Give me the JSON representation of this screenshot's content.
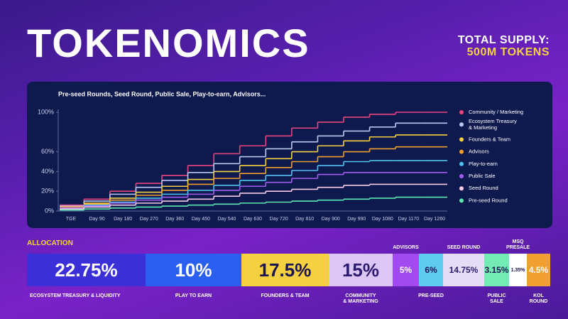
{
  "header": {
    "title": "TOKENOMICS",
    "supply_label": "TOTAL SUPPLY:",
    "supply_value": "500M TOKENS"
  },
  "chart_data": {
    "type": "line",
    "subtitle": "Pre-seed Rounds, Seed Round, Public Sale, Play-to-earn, Advisors...",
    "categories": [
      "TGE",
      "Day 90",
      "Day 180",
      "Day 270",
      "Day 360",
      "Day 450",
      "Day 540",
      "Day 630",
      "Day 720",
      "Day 810",
      "Day 900",
      "Day 990",
      "Day 1080",
      "Day 1170",
      "Day 1260"
    ],
    "ylim": [
      0,
      100
    ],
    "yticks": [
      {
        "value": 0,
        "label": "0%"
      },
      {
        "value": 20,
        "label": "20%"
      },
      {
        "value": 40,
        "label": "40%"
      },
      {
        "value": 60,
        "label": "60%"
      },
      {
        "value": 100,
        "label": "100%"
      }
    ],
    "step": true,
    "series": [
      {
        "name": "Community / Marketing",
        "color": "#e8457e",
        "values": [
          6,
          12,
          20,
          28,
          36,
          46,
          58,
          66,
          76,
          84,
          90,
          95,
          98,
          100,
          100
        ]
      },
      {
        "name": "Ecosystem Treasury & Marketing",
        "color": "#b8c9f0",
        "values": [
          5,
          10,
          17,
          24,
          31,
          39,
          48,
          55,
          63,
          70,
          76,
          81,
          85,
          89,
          89
        ]
      },
      {
        "name": "Founders & Team",
        "color": "#f5d142",
        "values": [
          4,
          8,
          13,
          19,
          25,
          32,
          40,
          46,
          53,
          60,
          66,
          71,
          75,
          77,
          77
        ]
      },
      {
        "name": "Advisors",
        "color": "#f0a030",
        "values": [
          4,
          7,
          11,
          16,
          21,
          27,
          33,
          38,
          44,
          50,
          55,
          60,
          63,
          65,
          65
        ]
      },
      {
        "name": "Play-to-earn",
        "color": "#4ec3ee",
        "values": [
          3,
          6,
          9,
          13,
          17,
          21,
          26,
          31,
          36,
          41,
          46,
          50,
          51,
          51,
          51
        ]
      },
      {
        "name": "Public Sale",
        "color": "#a35cf0",
        "values": [
          3,
          5,
          8,
          11,
          14,
          17,
          21,
          25,
          29,
          33,
          37,
          39,
          39,
          39,
          39
        ]
      },
      {
        "name": "Seed Round",
        "color": "#f5cde6",
        "values": [
          2,
          4,
          6,
          8,
          10,
          12,
          15,
          18,
          20,
          22,
          24,
          26,
          27,
          27,
          27
        ]
      },
      {
        "name": "Pre-seed Round",
        "color": "#5ee8b0",
        "values": [
          1,
          2,
          3,
          4,
          5,
          6,
          7,
          8,
          9,
          10,
          11,
          12,
          13,
          14,
          14
        ]
      }
    ]
  },
  "allocation": {
    "title": "ALLOCATION",
    "items": [
      {
        "value": "22.75%",
        "label": "ECOSYSTEM TREASURY & LIQUIDITY",
        "color": "#3b2fd8"
      },
      {
        "value": "10%",
        "label": "PLAY TO EARN",
        "color": "#2a5ff0"
      },
      {
        "value": "17.5%",
        "label": "FOUNDERS & TEAM",
        "color": "#f5d142"
      },
      {
        "value": "15%",
        "label": "COMMUNITY\n& MARKETING",
        "color": "#dcc6f5"
      },
      {
        "value": "5%",
        "label": "ADVISORS",
        "color": "#a04af0"
      },
      {
        "value": "6%",
        "label": "PRE-SEED",
        "color": "#5ecbef"
      },
      {
        "value": "14.75%",
        "label": "SEED ROUND",
        "color": "#e4ddf5"
      },
      {
        "value": "3.15%",
        "label": "PUBLIC\nSALE",
        "color": "#74eab4"
      },
      {
        "value": "1.35%",
        "label": "MSQ\nPRESALE",
        "color": "#ffffff"
      },
      {
        "value": "4.5%",
        "label": "KOL\nROUND",
        "color": "#f0a030"
      }
    ]
  }
}
